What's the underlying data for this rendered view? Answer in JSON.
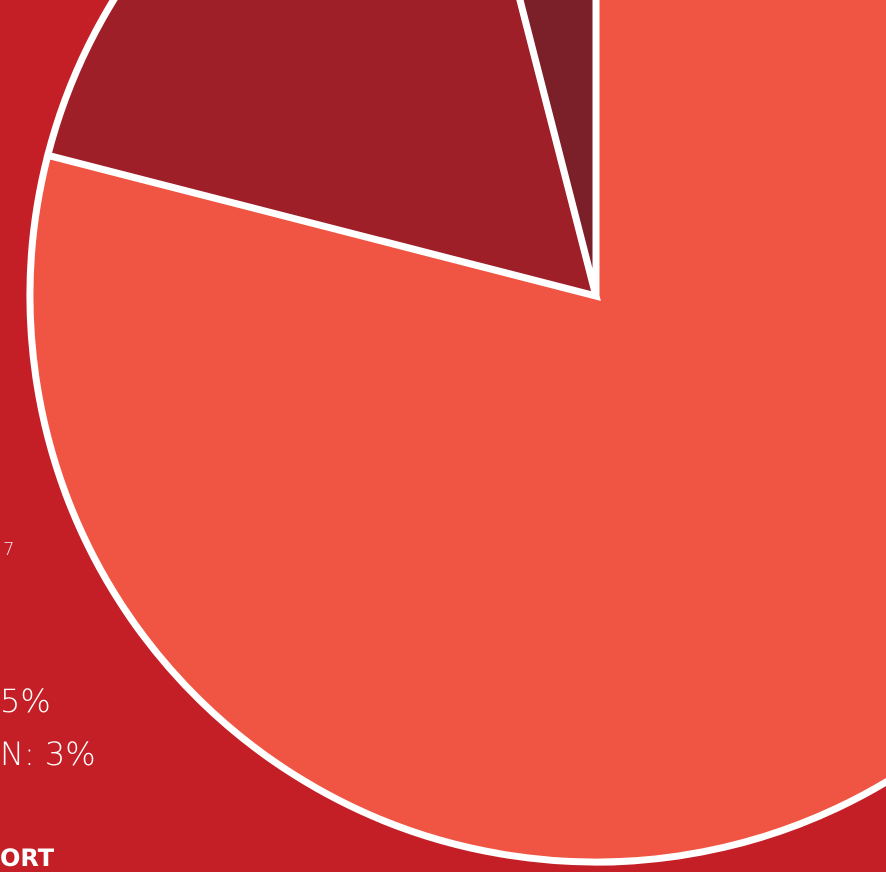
{
  "chart_data": {
    "type": "pie",
    "title": "",
    "slices": [
      {
        "value": 79,
        "color": "#f05543"
      },
      {
        "value": 17,
        "color": "#9e1f28"
      },
      {
        "value": 4,
        "color": "#7b1f29"
      }
    ],
    "start": "12 o'clock",
    "direction": "clockwise",
    "slice_border_color": "#ffffff"
  },
  "background_color": "#c41f26",
  "text_fragments": {
    "year_fragment": "7",
    "line_a": "5%",
    "line_b": "N: 3%",
    "footer_fragment": "ORT"
  }
}
